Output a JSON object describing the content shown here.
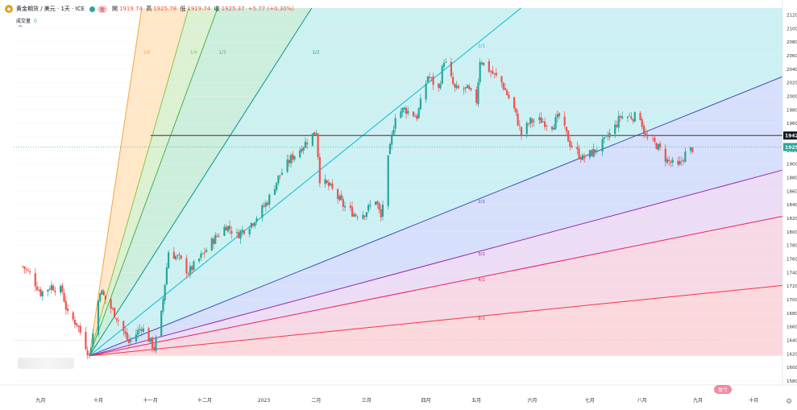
{
  "header": {
    "symbol": "黄金期货 / 美元 · 1天 · ICE",
    "badge": "盈",
    "ohlc": {
      "open_label": "開",
      "open": "1919.74",
      "high_label": "高",
      "high": "1925.78",
      "low_label": "低",
      "low": "1919.74",
      "close_label": "收",
      "close": "1925.37",
      "change": "+5.77 (+0.30%)"
    },
    "volume_label": "成交量",
    "volume_value": "0"
  },
  "corner_badge": "盈亏",
  "colors": {
    "up": "#26a69a",
    "down": "#ef5350",
    "grid": "#eef0f3",
    "axis_text": "#333333",
    "price_marker": "#131722",
    "last_price_marker": "#26a69a"
  },
  "chart_data": {
    "type": "candlestick",
    "title": "",
    "xlabel": "",
    "ylabel": "",
    "ylim": [
      1574,
      2130
    ],
    "y_ticks": [
      1580,
      1600,
      1620,
      1640,
      1660,
      1680,
      1700,
      1720,
      1740,
      1760,
      1780,
      1800,
      1820,
      1840,
      1860,
      1880,
      1900,
      1920,
      1940,
      1960,
      1980,
      2000,
      2020,
      2040,
      2060,
      2080,
      2100,
      2120
    ],
    "x_ticks": [
      {
        "label": "九月",
        "date": "2022-09-01"
      },
      {
        "label": "十月",
        "date": "2022-10-03"
      },
      {
        "label": "十一月",
        "date": "2022-11-01"
      },
      {
        "label": "十二月",
        "date": "2022-12-01"
      },
      {
        "label": "2023",
        "date": "2023-01-03"
      },
      {
        "label": "二月",
        "date": "2023-02-01"
      },
      {
        "label": "三月",
        "date": "2023-03-01"
      },
      {
        "label": "四月",
        "date": "2023-04-03"
      },
      {
        "label": "五月",
        "date": "2023-05-01"
      },
      {
        "label": "六月",
        "date": "2023-06-01"
      },
      {
        "label": "七月",
        "date": "2023-07-03"
      },
      {
        "label": "八月",
        "date": "2023-08-01"
      },
      {
        "label": "九月",
        "date": "2023-09-01"
      },
      {
        "label": "十月",
        "date": "2023-10-02"
      }
    ],
    "horizontal_line": {
      "price": 1942,
      "label": "1942",
      "start": "2022-11-01"
    },
    "last_price": {
      "price": 1925,
      "label": "1925"
    },
    "fan_anchor": {
      "date": "2022-09-28",
      "price": 1617
    },
    "fan": [
      {
        "label": "1/8",
        "date": "2022-10-27",
        "price": 2128,
        "color": "#f7a440",
        "fill": "#ffe4c2"
      },
      {
        "label": "1/4",
        "date": "2022-11-22",
        "price": 2128,
        "color": "#8bc34a",
        "fill": "#d7efcc"
      },
      {
        "label": "1/3",
        "date": "2022-12-08",
        "price": 2128,
        "color": "#4caf50",
        "fill": "#c6ecd9"
      },
      {
        "label": "1/2",
        "date": "2023-01-29",
        "price": 2128,
        "color": "#009688",
        "fill": "#c7efee"
      },
      {
        "label": "1/1",
        "date": "2023-05-01",
        "price": 2077,
        "color": "#00bcd4",
        "fill": "#c8eef4"
      },
      {
        "label": "2/1",
        "date": "2023-05-01",
        "price": 1847,
        "color": "#3f51b5",
        "fill": "#d2dcfb"
      },
      {
        "label": "3/1",
        "date": "2023-05-01",
        "price": 1770,
        "color": "#9c27b0",
        "fill": "#ead8f4"
      },
      {
        "label": "4/1",
        "date": "2023-05-01",
        "price": 1732,
        "color": "#e91e63",
        "fill": "#f6d4e2"
      },
      {
        "label": "8/1",
        "date": "2023-05-01",
        "price": 1675,
        "color": "#f23645",
        "fill": "#fbd4d8"
      }
    ],
    "series_close": [
      {
        "date": "2022-08-22",
        "close": 1749
      },
      {
        "date": "2022-08-26",
        "close": 1738
      },
      {
        "date": "2022-09-01",
        "close": 1710
      },
      {
        "date": "2022-09-07",
        "close": 1720
      },
      {
        "date": "2022-09-13",
        "close": 1712
      },
      {
        "date": "2022-09-16",
        "close": 1677
      },
      {
        "date": "2022-09-21",
        "close": 1665
      },
      {
        "date": "2022-09-26",
        "close": 1632
      },
      {
        "date": "2022-09-28",
        "close": 1617
      },
      {
        "date": "2022-10-04",
        "close": 1715
      },
      {
        "date": "2022-10-07",
        "close": 1700
      },
      {
        "date": "2022-10-13",
        "close": 1675
      },
      {
        "date": "2022-10-20",
        "close": 1636
      },
      {
        "date": "2022-10-27",
        "close": 1660
      },
      {
        "date": "2022-11-03",
        "close": 1628
      },
      {
        "date": "2022-11-07",
        "close": 1678
      },
      {
        "date": "2022-11-11",
        "close": 1771
      },
      {
        "date": "2022-11-17",
        "close": 1760
      },
      {
        "date": "2022-11-22",
        "close": 1740
      },
      {
        "date": "2022-11-29",
        "close": 1763
      },
      {
        "date": "2022-12-05",
        "close": 1785
      },
      {
        "date": "2022-12-13",
        "close": 1809
      },
      {
        "date": "2022-12-19",
        "close": 1795
      },
      {
        "date": "2022-12-28",
        "close": 1815
      },
      {
        "date": "2023-01-05",
        "close": 1845
      },
      {
        "date": "2023-01-11",
        "close": 1880
      },
      {
        "date": "2023-01-18",
        "close": 1908
      },
      {
        "date": "2023-01-25",
        "close": 1928
      },
      {
        "date": "2023-02-01",
        "close": 1949
      },
      {
        "date": "2023-02-03",
        "close": 1878
      },
      {
        "date": "2023-02-09",
        "close": 1865
      },
      {
        "date": "2023-02-16",
        "close": 1839
      },
      {
        "date": "2023-02-23",
        "close": 1825
      },
      {
        "date": "2023-02-28",
        "close": 1828
      },
      {
        "date": "2023-03-06",
        "close": 1848
      },
      {
        "date": "2023-03-09",
        "close": 1820
      },
      {
        "date": "2023-03-13",
        "close": 1906
      },
      {
        "date": "2023-03-17",
        "close": 1973
      },
      {
        "date": "2023-03-22",
        "close": 1981
      },
      {
        "date": "2023-03-29",
        "close": 1970
      },
      {
        "date": "2023-04-04",
        "close": 2030
      },
      {
        "date": "2023-04-10",
        "close": 2010
      },
      {
        "date": "2023-04-13",
        "close": 2054
      },
      {
        "date": "2023-04-19",
        "close": 2010
      },
      {
        "date": "2023-04-26",
        "close": 2010
      },
      {
        "date": "2023-05-01",
        "close": 1993
      },
      {
        "date": "2023-05-03",
        "close": 2054
      },
      {
        "date": "2023-05-09",
        "close": 2036
      },
      {
        "date": "2023-05-15",
        "close": 2020
      },
      {
        "date": "2023-05-22",
        "close": 1980
      },
      {
        "date": "2023-05-26",
        "close": 1944
      },
      {
        "date": "2023-05-31",
        "close": 1963
      },
      {
        "date": "2023-06-06",
        "close": 1964
      },
      {
        "date": "2023-06-12",
        "close": 1957
      },
      {
        "date": "2023-06-16",
        "close": 1970
      },
      {
        "date": "2023-06-22",
        "close": 1930
      },
      {
        "date": "2023-06-29",
        "close": 1908
      },
      {
        "date": "2023-07-05",
        "close": 1918
      },
      {
        "date": "2023-07-11",
        "close": 1933
      },
      {
        "date": "2023-07-17",
        "close": 1955
      },
      {
        "date": "2023-07-20",
        "close": 1970
      },
      {
        "date": "2023-07-26",
        "close": 1970
      },
      {
        "date": "2023-07-31",
        "close": 1970
      },
      {
        "date": "2023-08-03",
        "close": 1938
      },
      {
        "date": "2023-08-09",
        "close": 1928
      },
      {
        "date": "2023-08-15",
        "close": 1905
      },
      {
        "date": "2023-08-21",
        "close": 1895
      },
      {
        "date": "2023-08-25",
        "close": 1915
      },
      {
        "date": "2023-08-30",
        "close": 1925
      }
    ]
  }
}
